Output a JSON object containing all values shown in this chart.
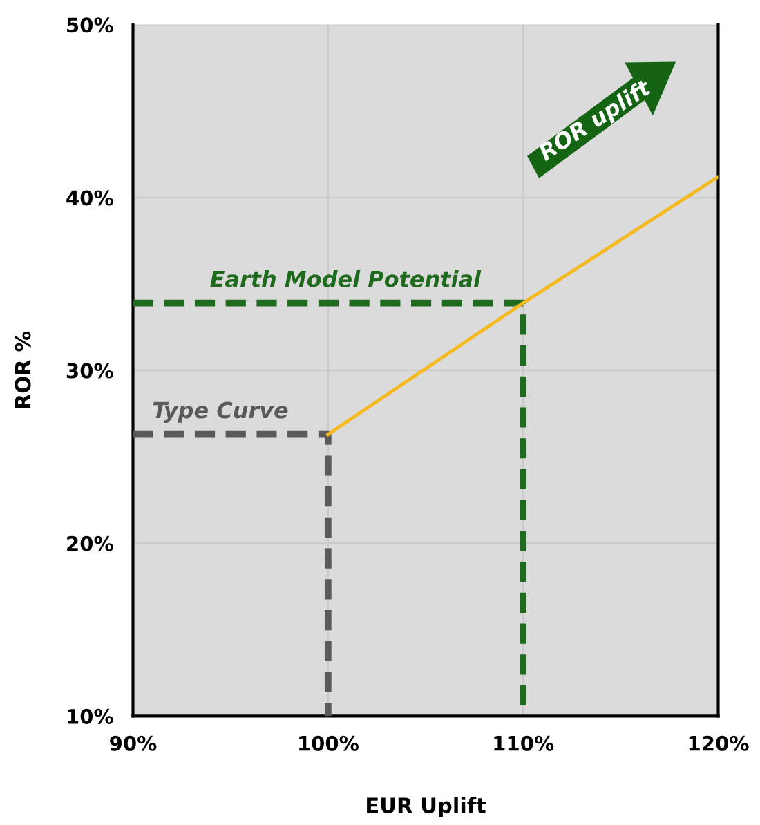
{
  "chart_data": {
    "type": "line",
    "xlabel": "EUR Uplift",
    "ylabel": "ROR %",
    "xlim": [
      90,
      120
    ],
    "ylim": [
      10,
      50
    ],
    "xticks": [
      {
        "value": 90,
        "label": "90%"
      },
      {
        "value": 100,
        "label": "100%"
      },
      {
        "value": 110,
        "label": "110%"
      },
      {
        "value": 120,
        "label": "120%"
      }
    ],
    "yticks": [
      {
        "value": 10,
        "label": "10%"
      },
      {
        "value": 20,
        "label": "20%"
      },
      {
        "value": 30,
        "label": "30%"
      },
      {
        "value": 40,
        "label": "40%"
      },
      {
        "value": 50,
        "label": "50%"
      }
    ],
    "grid": true,
    "marker": "none",
    "annotations": [
      "ROR uplift"
    ],
    "series": [
      {
        "name": "Type Curve",
        "color": "#595959",
        "line_style": "dashed",
        "x": [
          90,
          100,
          100
        ],
        "values": [
          26.3,
          26.3,
          10
        ]
      },
      {
        "name": "Earth Model Potential",
        "color": "#1e6b1e",
        "line_style": "dashed",
        "x": [
          90,
          110,
          110
        ],
        "values": [
          33.9,
          33.9,
          10
        ]
      },
      {
        "color": "#f5b921",
        "line_style": "solid",
        "x": [
          100,
          110,
          120
        ],
        "values": [
          26.3,
          33.9,
          41.2
        ]
      }
    ]
  }
}
